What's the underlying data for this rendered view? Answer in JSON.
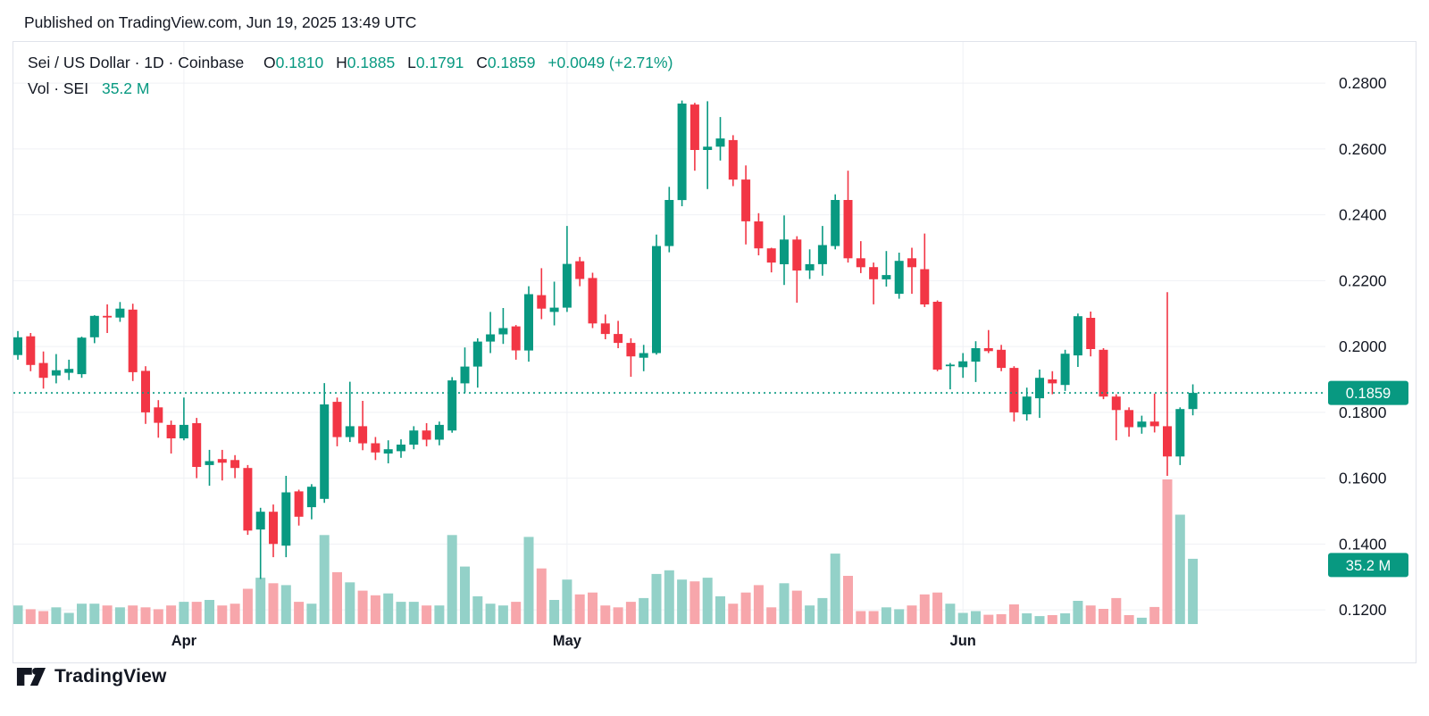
{
  "header": {
    "published_line": "Published on TradingView.com, Jun 19, 2025 13:49 UTC"
  },
  "legend": {
    "symbol_title": "Sei / US Dollar · 1D · Coinbase",
    "o_label": "O",
    "o_value": "0.1810",
    "h_label": "H",
    "h_value": "0.1885",
    "l_label": "L",
    "l_value": "0.1791",
    "c_label": "C",
    "c_value": "0.1859",
    "change": "+0.0049 (+2.71%)",
    "volume_label": "Vol · SEI",
    "volume_value": "35.2 M"
  },
  "price_scale": {
    "tick_labels": [
      "0.2800",
      "0.2600",
      "0.2400",
      "0.2200",
      "0.2000",
      "0.1800",
      "0.1600",
      "0.1400",
      "0.1200"
    ],
    "price_badge": "0.1859",
    "volume_badge": "35.2 M"
  },
  "time_scale": {
    "labels": [
      "Apr",
      "May",
      "Jun"
    ]
  },
  "footer": {
    "brand": "TradingView"
  },
  "colors": {
    "up": "#089981",
    "down": "#f23645",
    "vol_up": "#93d1c8",
    "vol_down": "#f7a6ab",
    "grid": "#eff1f5",
    "text": "#131722",
    "badge_bg": "#089981",
    "badge_text": "#ffffff",
    "price_line": "#089981",
    "border": "#e0e3eb"
  },
  "chart_data": {
    "type": "candlestick+volume",
    "title": "Sei / US Dollar",
    "interval": "1D",
    "exchange": "Coinbase",
    "legend_pane2": "Vol · SEI",
    "last_bar": {
      "open": 0.181,
      "high": 0.1885,
      "low": 0.1791,
      "close": 0.1859,
      "change": "+0.0049 (+2.71%)",
      "volume_millions": 35.2
    },
    "current_price_line": 0.1859,
    "y_ticks": [
      0.28,
      0.26,
      0.24,
      0.22,
      0.2,
      0.18,
      0.16,
      0.14,
      0.12
    ],
    "ylim": [
      0.1157,
      0.2925
    ],
    "volume_ylim_millions": [
      0,
      314
    ],
    "x_months": [
      {
        "label": "Apr",
        "candle_index": 13
      },
      {
        "label": "May",
        "candle_index": 43
      },
      {
        "label": "Jun",
        "candle_index": 74
      }
    ],
    "grid": true,
    "legend_position": "top-left",
    "candles_format": [
      "open",
      "high",
      "low",
      "close",
      "volume_millions"
    ],
    "candles": [
      [
        0.1974,
        0.2047,
        0.196,
        0.2028,
        10
      ],
      [
        0.2031,
        0.2041,
        0.1925,
        0.1944,
        8
      ],
      [
        0.195,
        0.1985,
        0.1872,
        0.1905,
        7
      ],
      [
        0.1912,
        0.1977,
        0.1888,
        0.1928,
        9
      ],
      [
        0.192,
        0.196,
        0.1898,
        0.1932,
        6
      ],
      [
        0.1916,
        0.203,
        0.1905,
        0.2027,
        11
      ],
      [
        0.2028,
        0.2095,
        0.201,
        0.2093,
        11
      ],
      [
        0.2093,
        0.2128,
        0.2041,
        0.2088,
        10
      ],
      [
        0.2088,
        0.2135,
        0.2075,
        0.2115,
        9
      ],
      [
        0.2112,
        0.213,
        0.1895,
        0.1922,
        10
      ],
      [
        0.1926,
        0.194,
        0.1765,
        0.18,
        9
      ],
      [
        0.1815,
        0.1837,
        0.1723,
        0.1768,
        8
      ],
      [
        0.1762,
        0.1775,
        0.1675,
        0.1721,
        10
      ],
      [
        0.1721,
        0.1845,
        0.1715,
        0.1762,
        12
      ],
      [
        0.1767,
        0.1783,
        0.16,
        0.1634,
        12
      ],
      [
        0.164,
        0.1686,
        0.1577,
        0.1652,
        13
      ],
      [
        0.1658,
        0.1686,
        0.1593,
        0.1647,
        10
      ],
      [
        0.1655,
        0.167,
        0.16,
        0.1631,
        11
      ],
      [
        0.1631,
        0.164,
        0.1428,
        0.1441,
        19
      ],
      [
        0.1444,
        0.151,
        0.1294,
        0.1498,
        25
      ],
      [
        0.1498,
        0.152,
        0.136,
        0.14,
        22
      ],
      [
        0.1395,
        0.1607,
        0.136,
        0.1557,
        21
      ],
      [
        0.156,
        0.1565,
        0.1456,
        0.1483,
        12
      ],
      [
        0.1512,
        0.1582,
        0.1475,
        0.1574,
        11
      ],
      [
        0.1537,
        0.1889,
        0.1525,
        0.1824,
        48
      ],
      [
        0.1832,
        0.1845,
        0.1697,
        0.1725,
        28
      ],
      [
        0.1725,
        0.1893,
        0.171,
        0.1758,
        22.5
      ],
      [
        0.1758,
        0.1835,
        0.1685,
        0.1706,
        18
      ],
      [
        0.1706,
        0.1725,
        0.1655,
        0.1678,
        15.5
      ],
      [
        0.1675,
        0.1715,
        0.1645,
        0.1688,
        16.5
      ],
      [
        0.1682,
        0.1718,
        0.1662,
        0.1702,
        12
      ],
      [
        0.1702,
        0.1758,
        0.1688,
        0.1745,
        12
      ],
      [
        0.1745,
        0.1767,
        0.1697,
        0.1717,
        10
      ],
      [
        0.1717,
        0.1772,
        0.17,
        0.1762,
        10
      ],
      [
        0.1745,
        0.1907,
        0.1738,
        0.1897,
        48
      ],
      [
        0.1888,
        0.1997,
        0.186,
        0.1939,
        31
      ],
      [
        0.1939,
        0.2025,
        0.1875,
        0.2015,
        15
      ],
      [
        0.2015,
        0.2105,
        0.198,
        0.2037,
        11
      ],
      [
        0.2037,
        0.2117,
        0.2008,
        0.2056,
        10
      ],
      [
        0.2061,
        0.2065,
        0.196,
        0.1988,
        12
      ],
      [
        0.1988,
        0.2183,
        0.1954,
        0.2159,
        47
      ],
      [
        0.2156,
        0.2238,
        0.2083,
        0.2115,
        30
      ],
      [
        0.2105,
        0.2197,
        0.2064,
        0.2118,
        13
      ],
      [
        0.2118,
        0.2366,
        0.2105,
        0.2251,
        24
      ],
      [
        0.2259,
        0.2272,
        0.2183,
        0.2205,
        16
      ],
      [
        0.2208,
        0.2224,
        0.2056,
        0.207,
        17
      ],
      [
        0.207,
        0.2097,
        0.2022,
        0.2038,
        10
      ],
      [
        0.2038,
        0.2078,
        0.1995,
        0.2011,
        9
      ],
      [
        0.2011,
        0.2025,
        0.1908,
        0.197,
        12
      ],
      [
        0.1966,
        0.2005,
        0.1925,
        0.198,
        14
      ],
      [
        0.198,
        0.234,
        0.1975,
        0.2305,
        27
      ],
      [
        0.2305,
        0.2485,
        0.2286,
        0.2445,
        29
      ],
      [
        0.2445,
        0.2747,
        0.2426,
        0.2738,
        24
      ],
      [
        0.2735,
        0.274,
        0.2534,
        0.2597,
        23
      ],
      [
        0.2597,
        0.2745,
        0.2478,
        0.2607,
        25
      ],
      [
        0.2607,
        0.2697,
        0.2565,
        0.2632,
        15
      ],
      [
        0.2627,
        0.2642,
        0.2487,
        0.2507,
        11
      ],
      [
        0.2507,
        0.255,
        0.231,
        0.238,
        17
      ],
      [
        0.238,
        0.2405,
        0.2277,
        0.2298,
        21
      ],
      [
        0.2298,
        0.23,
        0.2225,
        0.2255,
        9
      ],
      [
        0.225,
        0.2398,
        0.2187,
        0.2325,
        22
      ],
      [
        0.2325,
        0.2335,
        0.2133,
        0.2231,
        18
      ],
      [
        0.2231,
        0.2295,
        0.2205,
        0.225,
        10
      ],
      [
        0.225,
        0.2366,
        0.2215,
        0.2308,
        14
      ],
      [
        0.2305,
        0.2462,
        0.2295,
        0.2445,
        38
      ],
      [
        0.2445,
        0.2534,
        0.2255,
        0.2268,
        26
      ],
      [
        0.2268,
        0.232,
        0.2223,
        0.2241,
        7
      ],
      [
        0.2241,
        0.2255,
        0.2128,
        0.2204,
        7
      ],
      [
        0.2204,
        0.229,
        0.2182,
        0.2217,
        9
      ],
      [
        0.216,
        0.2285,
        0.2145,
        0.226,
        8
      ],
      [
        0.2268,
        0.23,
        0.216,
        0.2241,
        10
      ],
      [
        0.2235,
        0.2343,
        0.212,
        0.2128,
        16
      ],
      [
        0.2136,
        0.214,
        0.1925,
        0.193,
        17
      ],
      [
        0.194,
        0.195,
        0.187,
        0.1945,
        11
      ],
      [
        0.1937,
        0.198,
        0.1905,
        0.1955,
        6
      ],
      [
        0.1954,
        0.2016,
        0.1892,
        0.1995,
        7
      ],
      [
        0.1995,
        0.205,
        0.198,
        0.1986,
        5
      ],
      [
        0.199,
        0.2005,
        0.1925,
        0.1935,
        5.3
      ],
      [
        0.1935,
        0.194,
        0.1772,
        0.18,
        10.6
      ],
      [
        0.1794,
        0.1875,
        0.1775,
        0.1848,
        5.8
      ],
      [
        0.1843,
        0.193,
        0.1783,
        0.1905,
        4.3
      ],
      [
        0.19,
        0.1925,
        0.1855,
        0.1888,
        4.8
      ],
      [
        0.1883,
        0.199,
        0.1865,
        0.1978,
        5.8
      ],
      [
        0.1973,
        0.21,
        0.1938,
        0.2092,
        12.5
      ],
      [
        0.2087,
        0.2106,
        0.197,
        0.1992,
        10
      ],
      [
        0.199,
        0.1995,
        0.184,
        0.1848,
        8.2
      ],
      [
        0.1848,
        0.1855,
        0.1715,
        0.1807,
        14
      ],
      [
        0.1807,
        0.1815,
        0.1726,
        0.1755,
        4.8
      ],
      [
        0.1755,
        0.179,
        0.1735,
        0.1772,
        3.4
      ],
      [
        0.1772,
        0.1857,
        0.1739,
        0.1758,
        9.2
      ],
      [
        0.1758,
        0.2165,
        0.1607,
        0.1666,
        78
      ],
      [
        0.1666,
        0.1815,
        0.164,
        0.181,
        59
      ],
      [
        0.181,
        0.1885,
        0.1791,
        0.1859,
        35.2
      ]
    ]
  }
}
